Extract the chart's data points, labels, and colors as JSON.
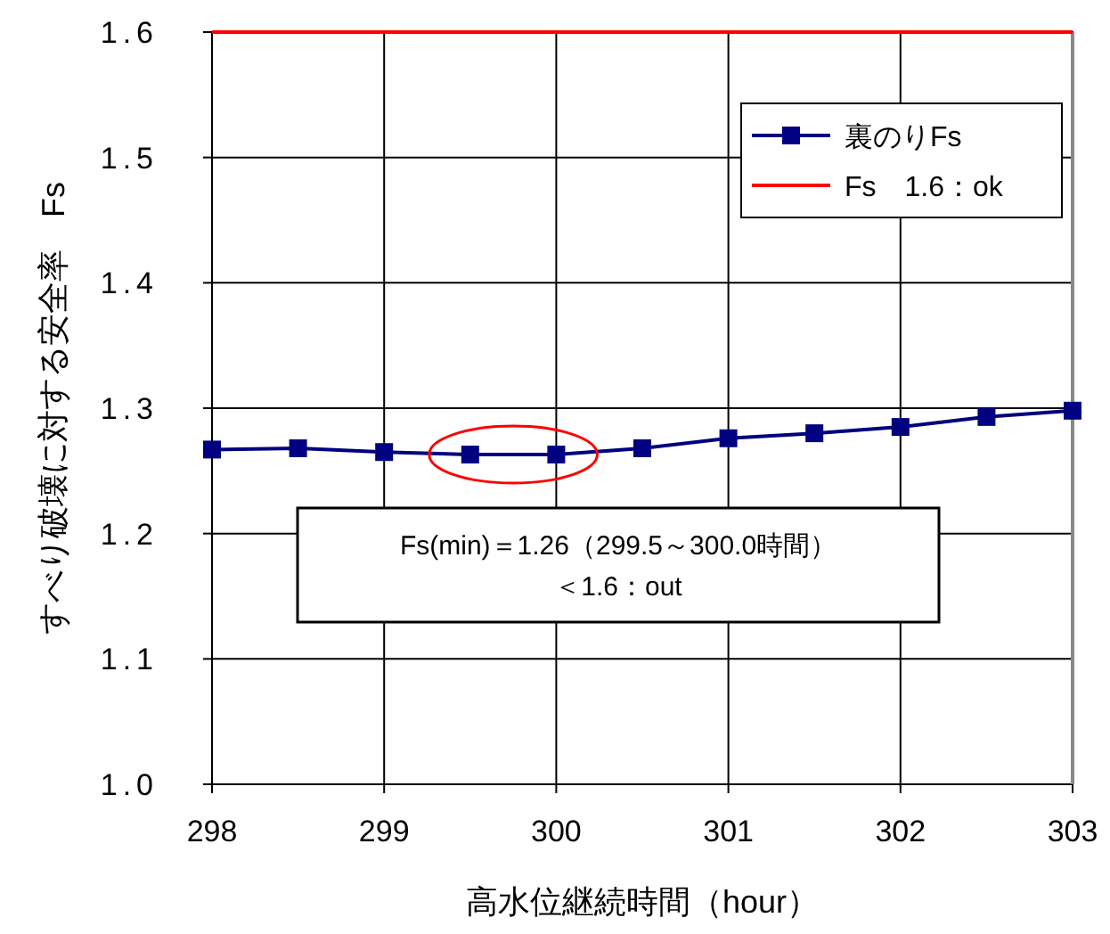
{
  "chart_data": {
    "type": "line",
    "xlabel": "高水位継続時間（hour）",
    "ylabel": "すべり破壊に対する安全率　Fs",
    "x": [
      298,
      298.5,
      299,
      299.5,
      300,
      300.5,
      301,
      301.5,
      302,
      302.5,
      303
    ],
    "series": [
      {
        "name": "裏のりFs",
        "color": "#000080",
        "values": [
          1.267,
          1.268,
          1.265,
          1.263,
          1.263,
          1.268,
          1.276,
          1.28,
          1.285,
          1.293,
          1.298
        ]
      }
    ],
    "ref_lines": [
      {
        "axis": "y",
        "value": 1.6,
        "label": "Fs　1.6：ok",
        "color": "#ff0000"
      }
    ],
    "annotations": [
      "Fs(min)＝1.26（299.5～300.0時間）",
      "＜1.6：out"
    ],
    "xlim": [
      298,
      303
    ],
    "ylim": [
      1.0,
      1.6
    ],
    "xticks": [
      298,
      299,
      300,
      301,
      302,
      303
    ],
    "yticks": [
      {
        "value": 1.0,
        "label": "1.0"
      },
      1.1,
      1.2,
      1.3,
      1.4,
      1.5,
      1.6
    ],
    "grid": true,
    "legend": "top right",
    "marker": "square",
    "line_style": "solid"
  }
}
